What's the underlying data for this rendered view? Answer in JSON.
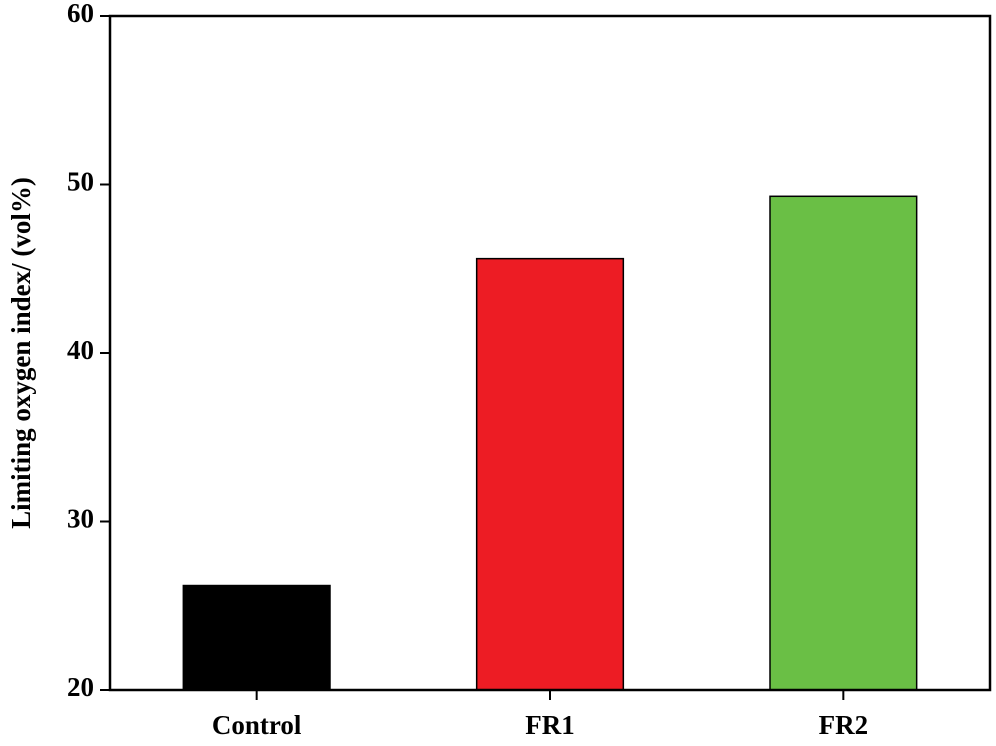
{
  "chart_data": {
    "type": "bar",
    "ylabel": "Limiting oxygen index/ (vol%)",
    "categories": [
      "Control",
      "FR1",
      "FR2"
    ],
    "values": [
      26.2,
      45.6,
      49.3
    ],
    "colors": [
      "#000000",
      "#ed1c24",
      "#6abf45"
    ],
    "ylim": [
      20,
      60
    ],
    "yticks": [
      20,
      30,
      40,
      50,
      60
    ]
  }
}
